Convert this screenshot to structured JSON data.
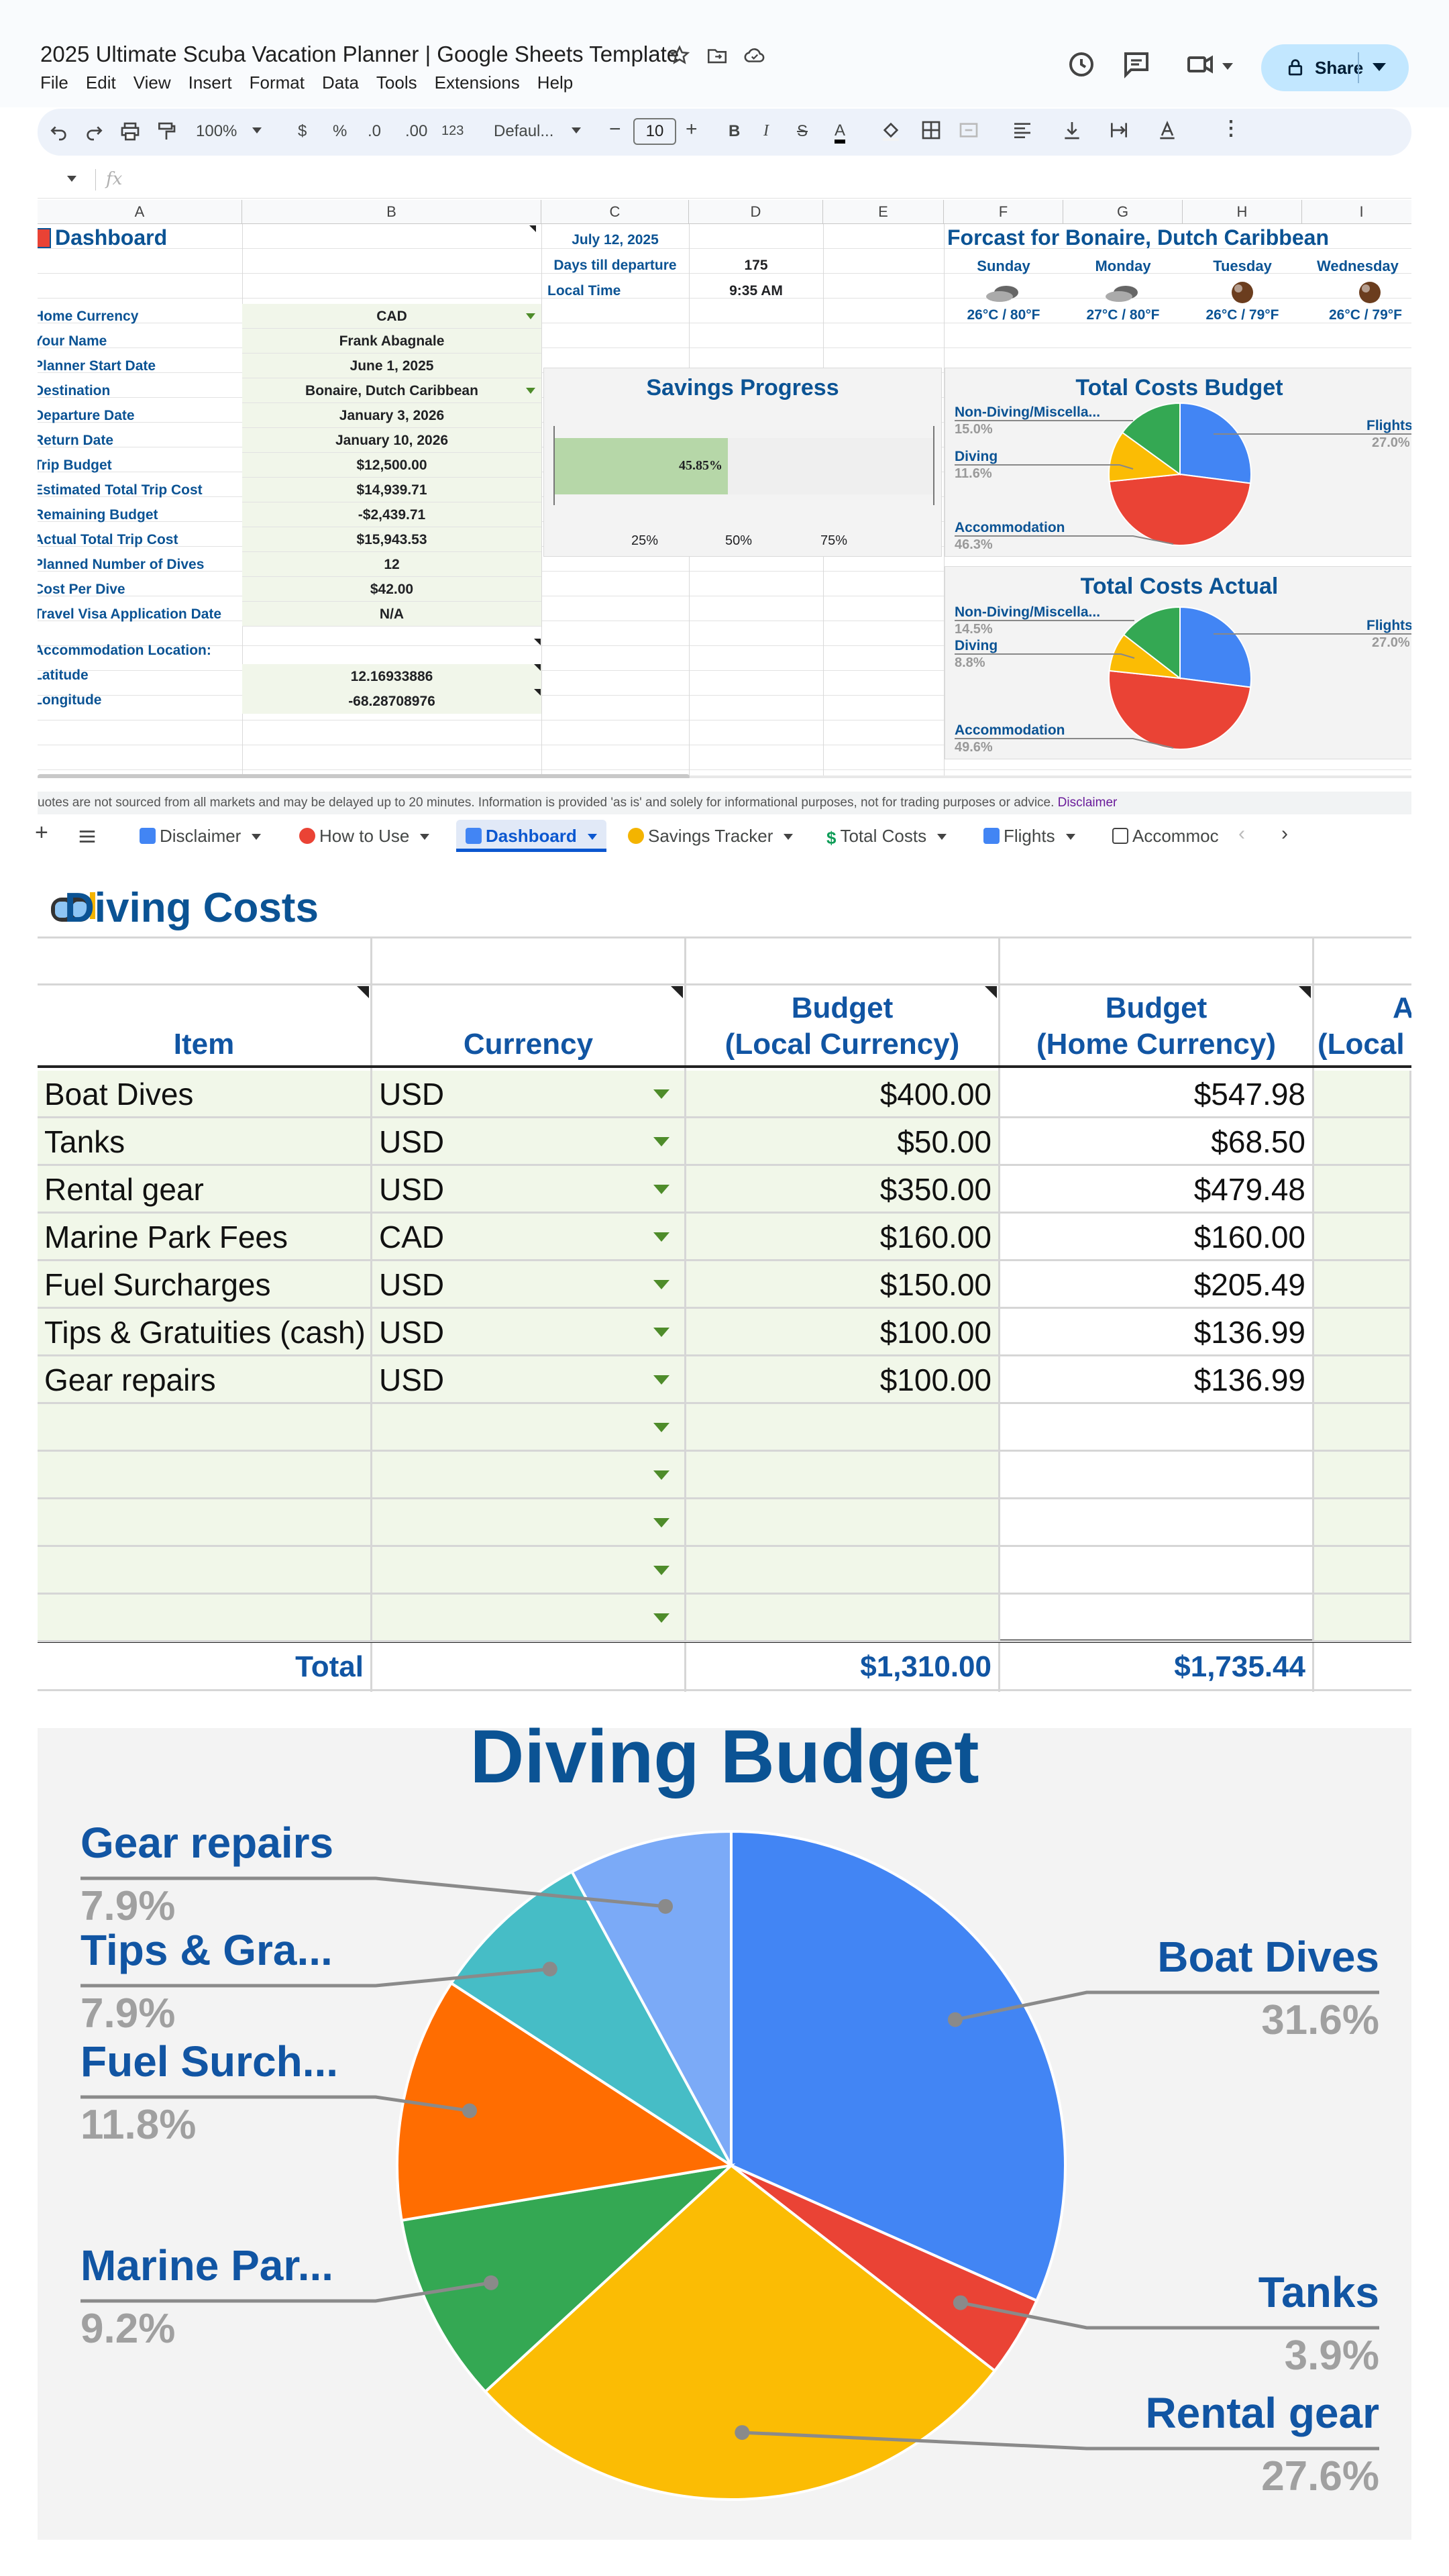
{
  "window": {
    "title": "2025 Ultimate Scuba Vacation Planner | Google Sheets Template",
    "menu": [
      "File",
      "Edit",
      "View",
      "Insert",
      "Format",
      "Data",
      "Tools",
      "Extensions",
      "Help"
    ],
    "share_label": "Share"
  },
  "toolbar": {
    "zoom": "100%",
    "currency": "$",
    "percent": "%",
    "dec_decrease": ".0",
    "dec_increase": ".00",
    "number_format": "123",
    "font": "Defaul...",
    "font_size": "10",
    "formula_label": "fx"
  },
  "columns": [
    "A",
    "B",
    "C",
    "D",
    "E",
    "F",
    "G",
    "H",
    "I"
  ],
  "dashboard": {
    "title": "Dashboard",
    "date": "July 12, 2025",
    "days_label": "Days till departure",
    "days_value": "175",
    "local_time_label": "Local Time",
    "local_time_value": "9:35 AM",
    "fields": [
      {
        "label": "Home Currency",
        "value": "CAD"
      },
      {
        "label": "Your Name",
        "value": "Frank Abagnale"
      },
      {
        "label": "Planner Start Date",
        "value": "June 1, 2025"
      },
      {
        "label": "Destination",
        "value": "Bonaire, Dutch Caribbean"
      },
      {
        "label": "Departure Date",
        "value": "January 3, 2026"
      },
      {
        "label": "Return Date",
        "value": "January 10, 2026"
      },
      {
        "label": "Trip Budget",
        "value": "$12,500.00"
      },
      {
        "label": "Estimated Total Trip Cost",
        "value": "$14,939.71"
      },
      {
        "label": "Remaining Budget",
        "value": "-$2,439.71"
      },
      {
        "label": "Actual Total Trip Cost",
        "value": "$15,943.53"
      },
      {
        "label": "Planned Number of Dives",
        "value": "12"
      },
      {
        "label": "Cost Per Dive",
        "value": "$42.00"
      },
      {
        "label": "Travel Visa Application Date",
        "value": "N/A"
      }
    ],
    "accommodation_label": "Accommodation Location:",
    "latitude_label": "Latitude",
    "latitude_value": "12.16933886",
    "longitude_label": "Longitude",
    "longitude_value": "-68.28708976",
    "forecast_title": "Forcast for Bonaire, Dutch Caribbean",
    "forecast": [
      {
        "day": "Sunday",
        "temp": "26°C / 80°F",
        "icon": "cloudy-icon"
      },
      {
        "day": "Monday",
        "temp": "27°C / 80°F",
        "icon": "cloudy-icon"
      },
      {
        "day": "Tuesday",
        "temp": "26°C / 79°F",
        "icon": "rain-icon"
      },
      {
        "day": "Wednesday",
        "temp": "26°C / 79°F",
        "icon": "rain-icon"
      }
    ],
    "savings": {
      "title": "Savings Progress",
      "progress_label": "45.85%",
      "progress": 0.4585,
      "ticks": [
        "25%",
        "50%",
        "75%"
      ]
    },
    "budget_chart": {
      "title": "Total Costs Budget",
      "slices": [
        {
          "name": "Flights",
          "pct": "27.0%",
          "value": 27.0,
          "color": "#4285f4"
        },
        {
          "name": "Accommodation",
          "pct": "46.3%",
          "value": 46.3,
          "color": "#ea4335"
        },
        {
          "name": "Diving",
          "pct": "11.6%",
          "value": 11.6,
          "color": "#fbbc04"
        },
        {
          "name": "Non-Diving/Miscella...",
          "pct": "15.0%",
          "value": 15.0,
          "color": "#34a853"
        }
      ]
    },
    "actual_chart": {
      "title": "Total Costs Actual",
      "slices": [
        {
          "name": "Flights",
          "pct": "27.0%",
          "value": 27.0,
          "color": "#4285f4"
        },
        {
          "name": "Accommodation",
          "pct": "49.6%",
          "value": 49.6,
          "color": "#ea4335"
        },
        {
          "name": "Diving",
          "pct": "8.8%",
          "value": 8.8,
          "color": "#fbbc04"
        },
        {
          "name": "Non-Diving/Miscella...",
          "pct": "14.5%",
          "value": 14.5,
          "color": "#34a853"
        }
      ]
    }
  },
  "notice": {
    "text": "uotes are not sourced from all markets and may be delayed up to 20 minutes. Information is provided 'as is' and solely for informational purposes, not for trading purposes or advice.",
    "link": "Disclaimer"
  },
  "sheet_tabs": [
    "Disclaimer",
    "How to Use",
    "Dashboard",
    "Savings Tracker",
    "Total Costs",
    "Flights",
    "Accommoc"
  ],
  "diving_costs": {
    "title": "Diving Costs",
    "headers": {
      "item": "Item",
      "currency": "Currency",
      "budget_local": [
        "Budget",
        "(Local Currency)"
      ],
      "budget_home": [
        "Budget",
        "(Home Currency)"
      ],
      "next_col": [
        "A",
        "(Local"
      ]
    },
    "rows": [
      {
        "item": "Boat Dives",
        "currency": "USD",
        "local": "$400.00",
        "home": "$547.98"
      },
      {
        "item": "Tanks",
        "currency": "USD",
        "local": "$50.00",
        "home": "$68.50"
      },
      {
        "item": "Rental gear",
        "currency": "USD",
        "local": "$350.00",
        "home": "$479.48"
      },
      {
        "item": "Marine Park Fees",
        "currency": "CAD",
        "local": "$160.00",
        "home": "$160.00"
      },
      {
        "item": "Fuel Surcharges",
        "currency": "USD",
        "local": "$150.00",
        "home": "$205.49"
      },
      {
        "item": "Tips & Gratuities (cash)",
        "currency": "USD",
        "local": "$100.00",
        "home": "$136.99"
      },
      {
        "item": "Gear repairs",
        "currency": "USD",
        "local": "$100.00",
        "home": "$136.99"
      }
    ],
    "total_label": "Total",
    "total_local": "$1,310.00",
    "total_home": "$1,735.44"
  },
  "chart_data": {
    "type": "pie",
    "title": "Diving Budget",
    "labels": [
      "Boat Dives",
      "Tanks",
      "Rental gear",
      "Marine Par...",
      "Fuel Surch...",
      "Tips & Gra...",
      "Gear repairs"
    ],
    "values": [
      31.6,
      3.9,
      27.6,
      9.2,
      11.8,
      7.9,
      7.9
    ],
    "display_pct": [
      "31.6%",
      "3.9%",
      "27.6%",
      "9.2%",
      "11.8%",
      "7.9%",
      "7.9%"
    ],
    "colors": [
      "#4285f4",
      "#ea4335",
      "#fbbc04",
      "#34a853",
      "#ff6d01",
      "#46bdc6",
      "#7baaf7"
    ]
  }
}
